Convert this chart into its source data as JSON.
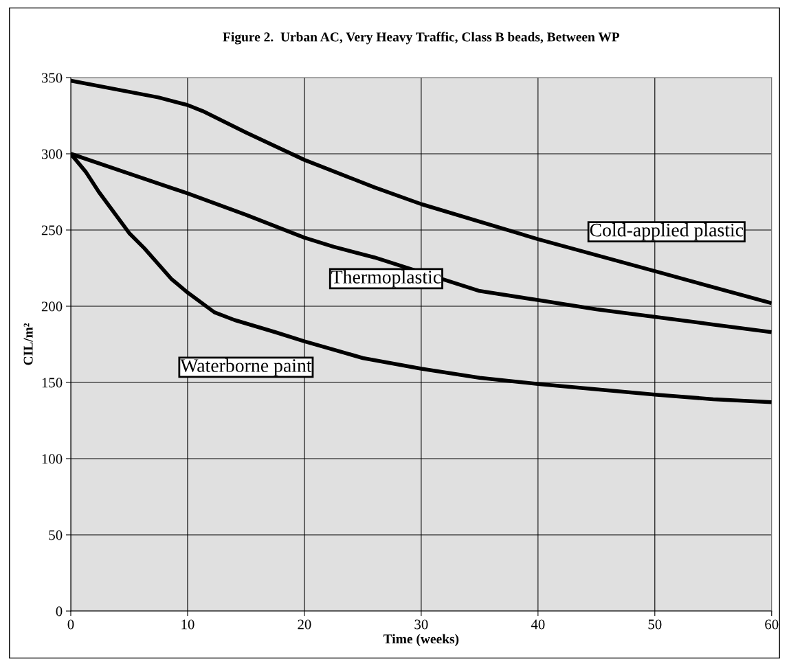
{
  "chart_data": {
    "type": "line",
    "title": "Figure 2.  Urban AC, Very Heavy Traffic, Class B beads, Between WP",
    "xlabel": "Time (weeks)",
    "ylabel": "CIL/m²",
    "xlim": [
      0,
      60
    ],
    "xticks": [
      0,
      10,
      20,
      30,
      40,
      50,
      60
    ],
    "ylim": [
      0,
      350
    ],
    "yticks": [
      0,
      50,
      100,
      150,
      200,
      250,
      300,
      350
    ],
    "grid": true,
    "line_style": "solid",
    "marker": "none",
    "series": [
      {
        "color": "#000000",
        "x": [
          0,
          7.5,
          10,
          11.3,
          15,
          20,
          26,
          30,
          40,
          50,
          60
        ],
        "values": [
          348,
          337,
          332,
          328,
          314,
          296,
          278,
          267,
          244,
          223,
          202
        ]
      },
      {
        "color": "#000000",
        "x": [
          0,
          5,
          10,
          15,
          20,
          22.5,
          26,
          35,
          40,
          45,
          50,
          55,
          60
        ],
        "values": [
          300,
          287,
          274,
          260,
          245,
          239,
          232,
          210,
          204,
          198,
          193,
          188,
          183
        ]
      },
      {
        "color": "#000000",
        "x": [
          0,
          1.3,
          2.4,
          5,
          6.3,
          8.6,
          10,
          12.3,
          14,
          17.5,
          20,
          25,
          30,
          35,
          40,
          50,
          55,
          60
        ],
        "values": [
          300,
          288,
          275,
          248,
          238,
          218,
          209,
          196,
          191,
          183,
          177,
          166,
          159,
          153,
          149,
          142,
          139,
          137
        ]
      }
    ],
    "annotations": [
      "Cold-applied plastic",
      "Thermoplastic",
      "Waterborne paint"
    ]
  }
}
